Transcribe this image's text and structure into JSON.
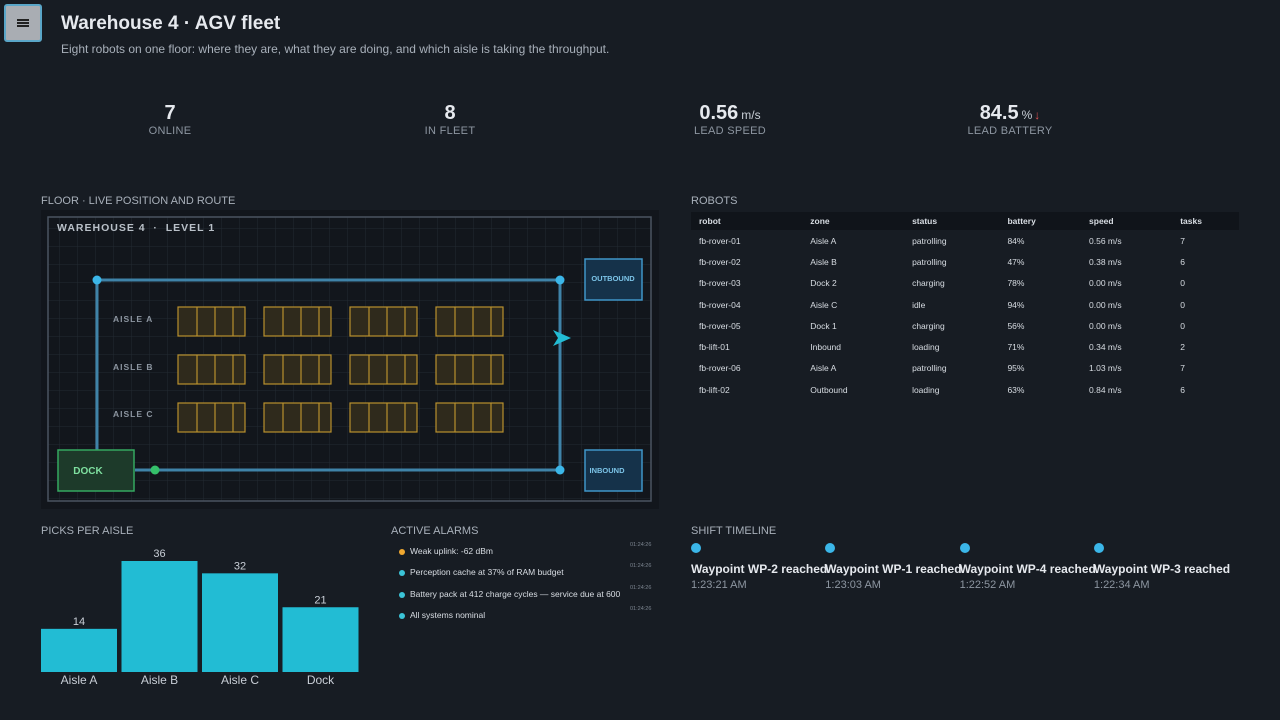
{
  "header": {
    "title": "Warehouse 4 · AGV fleet",
    "subtitle": "Eight robots on one floor: where they are, what they are doing, and which aisle is taking the throughput."
  },
  "kpis": [
    {
      "value": "7",
      "label": "ONLINE"
    },
    {
      "value": "8",
      "label": "IN FLEET"
    },
    {
      "value": "0.56",
      "unit": "m/s",
      "label": "LEAD SPEED"
    },
    {
      "value": "84.5",
      "unit": "%",
      "trend": "↓",
      "label": "LEAD BATTERY"
    }
  ],
  "floor": {
    "title": "FLOOR · LIVE POSITION AND ROUTE",
    "map_title": "WAREHOUSE 4  ·  LEVEL 1",
    "aisles": [
      "AISLE A",
      "AISLE B",
      "AISLE C"
    ],
    "dock": "DOCK",
    "outbound": "OUTBOUND",
    "inbound": "INBOUND"
  },
  "robots": {
    "title": "ROBOTS",
    "columns": [
      "robot",
      "zone",
      "status",
      "battery",
      "speed",
      "tasks"
    ],
    "rows": [
      [
        "fb-rover-01",
        "Aisle A",
        "patrolling",
        "84%",
        "0.56 m/s",
        "7"
      ],
      [
        "fb-rover-02",
        "Aisle B",
        "patrolling",
        "47%",
        "0.38 m/s",
        "6"
      ],
      [
        "fb-rover-03",
        "Dock 2",
        "charging",
        "78%",
        "0.00 m/s",
        "0"
      ],
      [
        "fb-rover-04",
        "Aisle C",
        "idle",
        "94%",
        "0.00 m/s",
        "0"
      ],
      [
        "fb-rover-05",
        "Dock 1",
        "charging",
        "56%",
        "0.00 m/s",
        "0"
      ],
      [
        "fb-lift-01",
        "Inbound",
        "loading",
        "71%",
        "0.34 m/s",
        "2"
      ],
      [
        "fb-rover-06",
        "Aisle A",
        "patrolling",
        "95%",
        "1.03 m/s",
        "7"
      ],
      [
        "fb-lift-02",
        "Outbound",
        "loading",
        "63%",
        "0.84 m/s",
        "6"
      ]
    ]
  },
  "chart_data": {
    "type": "bar",
    "title": "PICKS PER AISLE",
    "categories": [
      "Aisle A",
      "Aisle B",
      "Aisle C",
      "Dock"
    ],
    "values": [
      14,
      36,
      32,
      21
    ],
    "color": "#22bcd4"
  },
  "alarms": {
    "title": "ACTIVE ALARMS",
    "items": [
      {
        "text": "Weak uplink: -62 dBm",
        "time": "01:24:26"
      },
      {
        "text": "Perception cache at 37% of RAM budget",
        "time": "01:24:26"
      },
      {
        "text": "Battery pack at 412 charge cycles — service due at 600",
        "time": "01:24:26"
      },
      {
        "text": "All systems nominal",
        "time": "01:24:26"
      }
    ]
  },
  "timeline": {
    "title": "SHIFT TIMELINE",
    "events": [
      {
        "text": "Waypoint WP-2 reached",
        "time": "1:23:21 AM"
      },
      {
        "text": "Waypoint WP-1 reached",
        "time": "1:23:03 AM"
      },
      {
        "text": "Waypoint WP-4 reached",
        "time": "1:22:52 AM"
      },
      {
        "text": "Waypoint WP-3 reached",
        "time": "1:22:34 AM"
      }
    ]
  }
}
